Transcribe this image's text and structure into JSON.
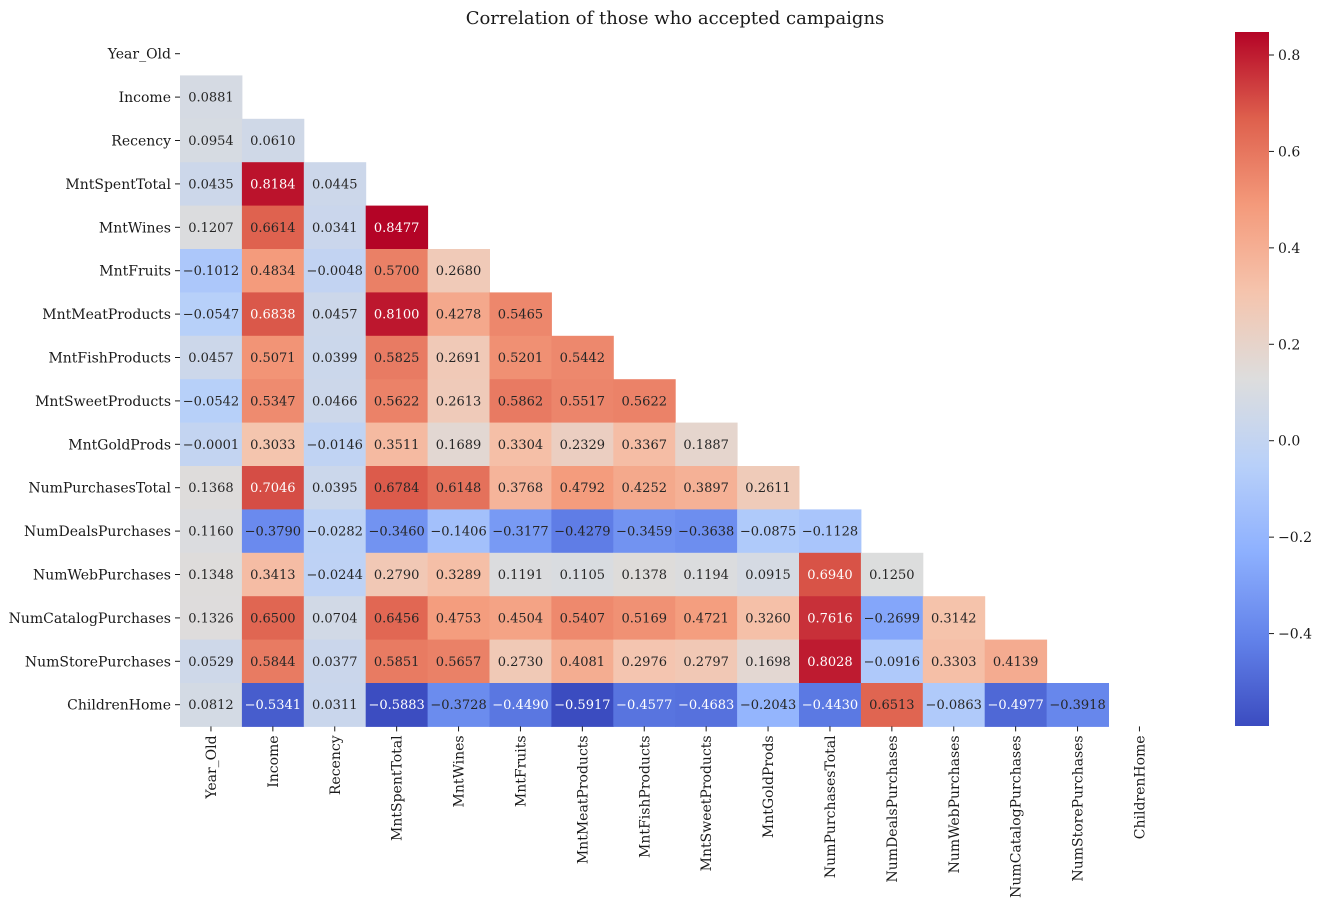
{
  "chart_data": {
    "type": "heatmap",
    "title": "Correlation of those who accepted campaigns",
    "xlabel": "",
    "ylabel": "",
    "colormap": "coolwarm",
    "mask": "upper-triangle-including-diagonal",
    "value_format": "4 decimals",
    "vmin": -0.5917,
    "vmax": 0.8477,
    "colorbar_ticks": [
      "−0.4",
      "−0.2",
      "0.0",
      "0.2",
      "0.4",
      "0.6",
      "0.8"
    ],
    "colorbar_tick_values": [
      -0.4,
      -0.2,
      0.0,
      0.2,
      0.4,
      0.6,
      0.8
    ],
    "labels": [
      "Year_Old",
      "Income",
      "Recency",
      "MntSpentTotal",
      "MntWines",
      "MntFruits",
      "MntMeatProducts",
      "MntFishProducts",
      "MntSweetProducts",
      "MntGoldProds",
      "NumPurchasesTotal",
      "NumDealsPurchases",
      "NumWebPurchases",
      "NumCatalogPurchases",
      "NumStorePurchases",
      "ChildrenHome"
    ],
    "values": [
      [],
      [
        "0.0881"
      ],
      [
        "0.0954",
        "0.0610"
      ],
      [
        "0.0435",
        "0.8184",
        "0.0445"
      ],
      [
        "0.1207",
        "0.6614",
        "0.0341",
        "0.8477"
      ],
      [
        "-0.1012",
        "0.4834",
        "-0.0048",
        "0.5700",
        "0.2680"
      ],
      [
        "-0.0547",
        "0.6838",
        "0.0457",
        "0.8100",
        "0.4278",
        "0.5465"
      ],
      [
        "0.0457",
        "0.5071",
        "0.0399",
        "0.5825",
        "0.2691",
        "0.5201",
        "0.5442"
      ],
      [
        "-0.0542",
        "0.5347",
        "0.0466",
        "0.5622",
        "0.2613",
        "0.5862",
        "0.5517",
        "0.5622"
      ],
      [
        "-0.0001",
        "0.3033",
        "-0.0146",
        "0.3511",
        "0.1689",
        "0.3304",
        "0.2329",
        "0.3367",
        "0.1887"
      ],
      [
        "0.1368",
        "0.7046",
        "0.0395",
        "0.6784",
        "0.6148",
        "0.3768",
        "0.4792",
        "0.4252",
        "0.3897",
        "0.2611"
      ],
      [
        "0.1160",
        "-0.3790",
        "-0.0282",
        "-0.3460",
        "-0.1406",
        "-0.3177",
        "-0.4279",
        "-0.3459",
        "-0.3638",
        "-0.0875",
        "-0.1128"
      ],
      [
        "0.1348",
        "0.3413",
        "-0.0244",
        "0.2790",
        "0.3289",
        "0.1191",
        "0.1105",
        "0.1378",
        "0.1194",
        "0.0915",
        "0.6940",
        "0.1250"
      ],
      [
        "0.1326",
        "0.6500",
        "0.0704",
        "0.6456",
        "0.4753",
        "0.4504",
        "0.5407",
        "0.5169",
        "0.4721",
        "0.3260",
        "0.7616",
        "-0.2699",
        "0.3142"
      ],
      [
        "0.0529",
        "0.5844",
        "0.0377",
        "0.5851",
        "0.5657",
        "0.2730",
        "0.4081",
        "0.2976",
        "0.2797",
        "0.1698",
        "0.8028",
        "-0.0916",
        "0.3303",
        "0.4139"
      ],
      [
        "0.0812",
        "-0.5341",
        "0.0311",
        "-0.5883",
        "-0.3728",
        "-0.4490",
        "-0.5917",
        "-0.4577",
        "-0.4683",
        "-0.2043",
        "-0.4430",
        "0.6513",
        "-0.0863",
        "-0.4977",
        "-0.3918"
      ]
    ]
  }
}
